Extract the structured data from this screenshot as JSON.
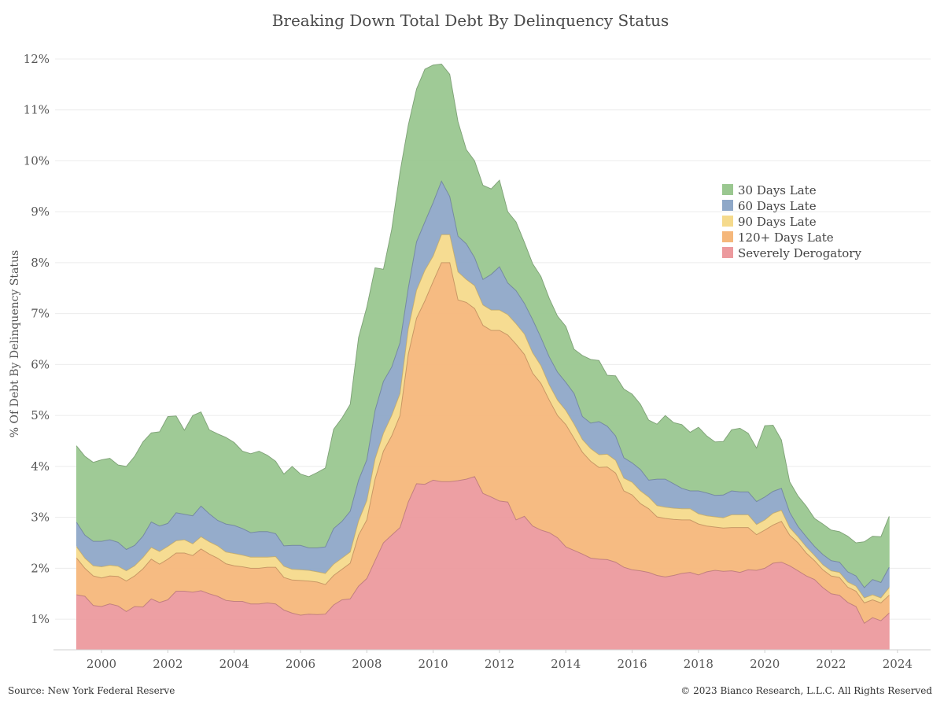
{
  "chart_data": {
    "type": "area",
    "stacked": true,
    "title": "Breaking Down Total Debt By Delinquency Status",
    "ylabel": "% Of Debt By Delinquency Status",
    "xlabel": "",
    "xlim": [
      1998.6,
      2025.0
    ],
    "ylim": [
      0.4,
      12.2
    ],
    "y_ticks": [
      1,
      2,
      3,
      4,
      5,
      6,
      7,
      8,
      9,
      10,
      11,
      12
    ],
    "y_tick_format": "{v}%",
    "x_ticks": [
      2000,
      2002,
      2004,
      2006,
      2008,
      2010,
      2012,
      2014,
      2016,
      2018,
      2020,
      2022,
      2024
    ],
    "grid": "horizontal",
    "legend": "upper-right",
    "source": "Source: New York Federal Reserve",
    "copyright": "© 2023 Bianco Research, L.L.C. All Rights Reserved",
    "x": [
      1999.25,
      1999.5,
      1999.75,
      2000,
      2000.25,
      2000.5,
      2000.75,
      2001,
      2001.25,
      2001.5,
      2001.75,
      2002,
      2002.25,
      2002.5,
      2002.75,
      2003,
      2003.25,
      2003.5,
      2003.75,
      2004,
      2004.25,
      2004.5,
      2004.75,
      2005,
      2005.25,
      2005.5,
      2005.75,
      2006,
      2006.25,
      2006.5,
      2006.75,
      2007,
      2007.25,
      2007.5,
      2007.75,
      2008,
      2008.25,
      2008.5,
      2008.75,
      2009,
      2009.25,
      2009.5,
      2009.75,
      2010,
      2010.25,
      2010.5,
      2010.75,
      2011,
      2011.25,
      2011.5,
      2011.75,
      2012,
      2012.25,
      2012.5,
      2012.75,
      2013,
      2013.25,
      2013.5,
      2013.75,
      2014,
      2014.25,
      2014.5,
      2014.75,
      2015,
      2015.25,
      2015.5,
      2015.75,
      2016,
      2016.25,
      2016.5,
      2016.75,
      2017,
      2017.25,
      2017.5,
      2017.75,
      2018,
      2018.25,
      2018.5,
      2018.75,
      2019,
      2019.25,
      2019.5,
      2019.75,
      2020,
      2020.25,
      2020.5,
      2020.75,
      2021,
      2021.25,
      2021.5,
      2021.75,
      2022,
      2022.25,
      2022.5,
      2022.75,
      2023,
      2023.25,
      2023.5,
      2023.75
    ],
    "series": [
      {
        "name": "Severely Derogatory",
        "color": "#ec9a9e",
        "values": [
          1.48,
          1.45,
          1.27,
          1.25,
          1.3,
          1.26,
          1.15,
          1.25,
          1.24,
          1.4,
          1.33,
          1.38,
          1.55,
          1.55,
          1.53,
          1.56,
          1.5,
          1.45,
          1.37,
          1.35,
          1.35,
          1.3,
          1.3,
          1.32,
          1.3,
          1.18,
          1.12,
          1.08,
          1.1,
          1.09,
          1.1,
          1.28,
          1.38,
          1.4,
          1.65,
          1.8,
          2.15,
          2.5,
          2.65,
          2.8,
          3.3,
          3.66,
          3.65,
          3.73,
          3.7,
          3.7,
          3.72,
          3.75,
          3.8,
          3.47,
          3.4,
          3.32,
          3.3,
          2.95,
          3.02,
          2.83,
          2.75,
          2.7,
          2.6,
          2.42,
          2.35,
          2.28,
          2.2,
          2.18,
          2.17,
          2.12,
          2.02,
          1.97,
          1.95,
          1.92,
          1.86,
          1.83,
          1.86,
          1.9,
          1.92,
          1.87,
          1.93,
          1.96,
          1.94,
          1.95,
          1.92,
          1.97,
          1.96,
          2.0,
          2.1,
          2.12,
          2.05,
          1.95,
          1.85,
          1.78,
          1.62,
          1.5,
          1.47,
          1.33,
          1.25,
          0.92,
          1.03,
          0.97,
          1.12
        ]
      },
      {
        "name": "120+ Days Late",
        "color": "#f5b77b",
        "values": [
          0.72,
          0.55,
          0.58,
          0.56,
          0.55,
          0.58,
          0.6,
          0.6,
          0.75,
          0.78,
          0.75,
          0.8,
          0.75,
          0.75,
          0.72,
          0.82,
          0.78,
          0.75,
          0.72,
          0.7,
          0.68,
          0.7,
          0.7,
          0.7,
          0.72,
          0.64,
          0.65,
          0.68,
          0.65,
          0.64,
          0.58,
          0.58,
          0.6,
          0.7,
          1.0,
          1.15,
          1.6,
          1.8,
          1.95,
          2.2,
          2.9,
          3.25,
          3.6,
          3.9,
          4.3,
          4.3,
          3.55,
          3.47,
          3.3,
          3.3,
          3.27,
          3.35,
          3.28,
          3.45,
          3.18,
          3.0,
          2.88,
          2.6,
          2.4,
          2.4,
          2.2,
          2.0,
          1.9,
          1.8,
          1.82,
          1.75,
          1.5,
          1.47,
          1.32,
          1.25,
          1.15,
          1.15,
          1.1,
          1.05,
          1.03,
          1.0,
          0.9,
          0.85,
          0.85,
          0.85,
          0.88,
          0.83,
          0.7,
          0.75,
          0.75,
          0.8,
          0.6,
          0.55,
          0.45,
          0.37,
          0.35,
          0.35,
          0.35,
          0.3,
          0.3,
          0.4,
          0.35,
          0.35,
          0.35
        ]
      },
      {
        "name": "90 Days Late",
        "color": "#f5da8c",
        "values": [
          0.22,
          0.2,
          0.2,
          0.22,
          0.21,
          0.2,
          0.2,
          0.2,
          0.22,
          0.23,
          0.25,
          0.25,
          0.24,
          0.26,
          0.23,
          0.24,
          0.24,
          0.24,
          0.23,
          0.24,
          0.23,
          0.22,
          0.22,
          0.2,
          0.21,
          0.22,
          0.21,
          0.21,
          0.21,
          0.2,
          0.22,
          0.22,
          0.22,
          0.22,
          0.28,
          0.38,
          0.4,
          0.35,
          0.4,
          0.43,
          0.5,
          0.55,
          0.6,
          0.5,
          0.55,
          0.55,
          0.55,
          0.45,
          0.45,
          0.4,
          0.4,
          0.4,
          0.4,
          0.4,
          0.4,
          0.4,
          0.35,
          0.3,
          0.3,
          0.28,
          0.28,
          0.25,
          0.25,
          0.25,
          0.25,
          0.25,
          0.25,
          0.25,
          0.25,
          0.23,
          0.22,
          0.22,
          0.22,
          0.22,
          0.22,
          0.2,
          0.2,
          0.2,
          0.2,
          0.25,
          0.25,
          0.25,
          0.2,
          0.2,
          0.23,
          0.22,
          0.15,
          0.12,
          0.12,
          0.1,
          0.1,
          0.1,
          0.1,
          0.1,
          0.1,
          0.1,
          0.1,
          0.1,
          0.15
        ]
      },
      {
        "name": "60 Days Late",
        "color": "#8fa8c8",
        "values": [
          0.48,
          0.45,
          0.48,
          0.5,
          0.5,
          0.47,
          0.42,
          0.4,
          0.42,
          0.5,
          0.5,
          0.45,
          0.55,
          0.5,
          0.55,
          0.6,
          0.55,
          0.5,
          0.55,
          0.55,
          0.52,
          0.48,
          0.5,
          0.5,
          0.45,
          0.4,
          0.47,
          0.48,
          0.44,
          0.47,
          0.52,
          0.7,
          0.72,
          0.8,
          0.8,
          0.8,
          0.95,
          1.02,
          0.95,
          1.0,
          0.8,
          0.95,
          0.95,
          1.05,
          1.05,
          0.75,
          0.7,
          0.7,
          0.55,
          0.5,
          0.7,
          0.85,
          0.62,
          0.65,
          0.6,
          0.65,
          0.55,
          0.55,
          0.55,
          0.55,
          0.6,
          0.45,
          0.5,
          0.65,
          0.55,
          0.48,
          0.4,
          0.38,
          0.42,
          0.33,
          0.52,
          0.55,
          0.48,
          0.4,
          0.35,
          0.45,
          0.45,
          0.42,
          0.45,
          0.47,
          0.45,
          0.45,
          0.45,
          0.45,
          0.43,
          0.43,
          0.3,
          0.2,
          0.2,
          0.18,
          0.2,
          0.2,
          0.2,
          0.2,
          0.2,
          0.2,
          0.3,
          0.3,
          0.4
        ]
      },
      {
        "name": "30 Days Late",
        "color": "#9ac790",
        "values": [
          1.5,
          1.55,
          1.55,
          1.6,
          1.6,
          1.52,
          1.63,
          1.75,
          1.85,
          1.75,
          1.85,
          2.1,
          1.9,
          1.65,
          1.97,
          1.85,
          1.65,
          1.7,
          1.7,
          1.63,
          1.52,
          1.55,
          1.58,
          1.5,
          1.42,
          1.41,
          1.55,
          1.4,
          1.4,
          1.48,
          1.55,
          1.95,
          2.03,
          2.1,
          2.8,
          3.0,
          2.8,
          2.2,
          2.7,
          3.35,
          3.2,
          3.0,
          3.0,
          2.7,
          2.3,
          2.4,
          2.25,
          1.85,
          1.9,
          1.85,
          1.68,
          1.7,
          1.4,
          1.35,
          1.2,
          1.1,
          1.2,
          1.15,
          1.1,
          1.1,
          0.87,
          1.2,
          1.25,
          1.2,
          1.0,
          1.18,
          1.35,
          1.35,
          1.28,
          1.18,
          1.08,
          1.25,
          1.2,
          1.25,
          1.15,
          1.25,
          1.12,
          1.05,
          1.05,
          1.2,
          1.25,
          1.15,
          1.05,
          1.4,
          1.3,
          0.95,
          0.6,
          0.6,
          0.6,
          0.55,
          0.6,
          0.6,
          0.6,
          0.7,
          0.65,
          0.9,
          0.85,
          0.9,
          1.0
        ]
      }
    ]
  }
}
